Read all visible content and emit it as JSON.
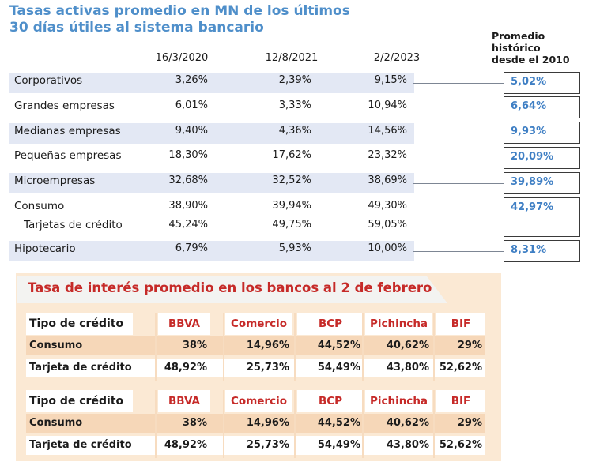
{
  "chart_data": [
    {
      "type": "table",
      "title": "Tasas activas promedio en MN de los últimos 30 días útiles al sistema bancario",
      "title_lines": [
        "Tasas activas promedio en MN de los últimos",
        "30 días útiles al sistema bancario"
      ],
      "columns": [
        "16/3/2020",
        "12/8/2021",
        "2/2/2023"
      ],
      "historic_header_lines": [
        "Promedio",
        "histórico",
        "desde el 2010"
      ],
      "rows": [
        {
          "label": "Corporativos",
          "values": [
            "3,26%",
            "2,39%",
            "9,15%"
          ],
          "historic": "5,02%"
        },
        {
          "label": "Grandes empresas",
          "values": [
            "6,01%",
            "3,33%",
            "10,94%"
          ],
          "historic": "6,64%"
        },
        {
          "label": "Medianas empresas",
          "values": [
            "9,40%",
            "4,36%",
            "14,56%"
          ],
          "historic": "9,93%"
        },
        {
          "label": "Pequeñas empresas",
          "values": [
            "18,30%",
            "17,62%",
            "23,32%"
          ],
          "historic": "20,09%"
        },
        {
          "label": "Microempresas",
          "values": [
            "32,68%",
            "32,52%",
            "38,69%"
          ],
          "historic": "39,89%"
        },
        {
          "label": "Consumo",
          "values": [
            "38,90%",
            "39,94%",
            "49,30%"
          ],
          "historic": "42,97%"
        },
        {
          "label": "Tarjetas de crédito",
          "values": [
            "45,24%",
            "49,75%",
            "59,05%"
          ],
          "historic": ""
        },
        {
          "label": "Hipotecario",
          "values": [
            "6,79%",
            "5,93%",
            "10,00%"
          ],
          "historic": "8,31%"
        }
      ]
    },
    {
      "type": "table",
      "title": "Tasa de interés promedio en los bancos al 2 de febrero",
      "header": [
        "Tipo de crédito",
        "BBVA",
        "Comercio",
        "BCP",
        "Pichincha",
        "BIF"
      ],
      "rows": [
        {
          "label": "Consumo",
          "values": [
            "38%",
            "14,96%",
            "44,52%",
            "40,62%",
            "29%"
          ]
        },
        {
          "label": "Tarjeta de crédito",
          "values": [
            "48,92%",
            "25,73%",
            "54,49%",
            "43,80%",
            "52,62%"
          ]
        }
      ],
      "repeated_block": {
        "header": [
          "Tipo de crédito",
          "BBVA",
          "Comercio",
          "BCP",
          "Pichincha",
          "BIF"
        ],
        "rows": [
          {
            "label": "Consumo",
            "values": [
              "38%",
              "14,96%",
              "44,52%",
              "40,62%",
              "29%"
            ]
          },
          {
            "label": "Tarjeta de crédito",
            "values": [
              "48,92%",
              "25,73%",
              "54,49%",
              "43,80%",
              "52,62%"
            ]
          }
        ]
      }
    }
  ],
  "colors": {
    "title_blue": "#4f8fca",
    "band": "#e3e8f4",
    "accent_red": "#c62a28",
    "panel": "#fbe9d4"
  }
}
